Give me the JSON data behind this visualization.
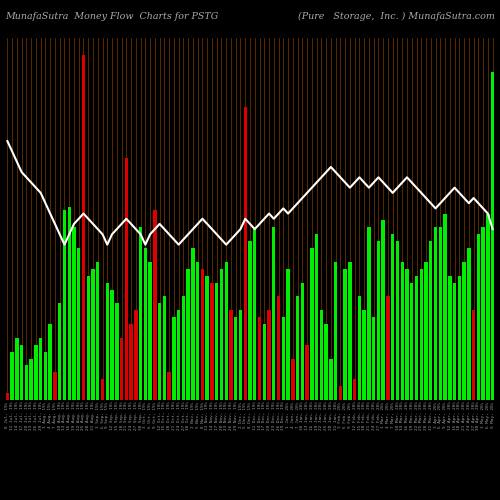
{
  "title_left": "MunafaSutra  Money Flow  Charts for PSTG",
  "title_right": "(Pure   Storage,  Inc. ) MunafaSutra.com",
  "bg_color": "#000000",
  "bar_color_pos": "#00ee00",
  "bar_color_neg": "#dd0000",
  "grid_color": "#7B3A00",
  "line_color": "#ffffff",
  "bar_values": [
    2,
    14,
    18,
    16,
    10,
    12,
    16,
    18,
    14,
    22,
    8,
    28,
    55,
    56,
    50,
    44,
    100,
    36,
    38,
    40,
    6,
    34,
    32,
    28,
    18,
    70,
    22,
    26,
    50,
    44,
    40,
    55,
    28,
    30,
    8,
    24,
    26,
    30,
    38,
    44,
    40,
    38,
    36,
    34,
    34,
    38,
    40,
    26,
    24,
    26,
    85,
    46,
    50,
    24,
    22,
    26,
    50,
    30,
    24,
    38,
    12,
    30,
    34,
    16,
    44,
    48,
    26,
    22,
    12,
    40,
    4,
    38,
    40,
    6,
    30,
    26,
    50,
    24,
    46,
    52,
    30,
    48,
    46,
    40,
    38,
    34,
    36,
    38,
    40,
    46,
    50,
    50,
    54,
    36,
    34,
    36,
    40,
    44,
    26,
    48,
    50,
    54,
    95
  ],
  "bar_colors": [
    "neg",
    "pos",
    "pos",
    "pos",
    "pos",
    "pos",
    "pos",
    "pos",
    "pos",
    "pos",
    "neg",
    "pos",
    "pos",
    "pos",
    "pos",
    "pos",
    "neg",
    "pos",
    "pos",
    "pos",
    "neg",
    "pos",
    "pos",
    "pos",
    "neg",
    "neg",
    "neg",
    "neg",
    "pos",
    "pos",
    "pos",
    "neg",
    "pos",
    "pos",
    "neg",
    "pos",
    "pos",
    "pos",
    "pos",
    "pos",
    "pos",
    "neg",
    "pos",
    "neg",
    "pos",
    "pos",
    "pos",
    "neg",
    "pos",
    "pos",
    "neg",
    "pos",
    "pos",
    "neg",
    "pos",
    "neg",
    "pos",
    "neg",
    "pos",
    "pos",
    "neg",
    "pos",
    "pos",
    "neg",
    "pos",
    "pos",
    "pos",
    "pos",
    "pos",
    "pos",
    "neg",
    "pos",
    "pos",
    "neg",
    "pos",
    "pos",
    "pos",
    "pos",
    "pos",
    "pos",
    "neg",
    "pos",
    "pos",
    "pos",
    "pos",
    "pos",
    "pos",
    "pos",
    "pos",
    "pos",
    "pos",
    "pos",
    "pos",
    "pos",
    "pos",
    "pos",
    "pos",
    "pos",
    "neg",
    "pos",
    "pos",
    "pos",
    "pos"
  ],
  "line_values": [
    72,
    70,
    68,
    66,
    65,
    64,
    63,
    62,
    60,
    58,
    56,
    54,
    52,
    54,
    56,
    57,
    58,
    57,
    56,
    55,
    54,
    52,
    54,
    55,
    56,
    57,
    56,
    55,
    54,
    52,
    54,
    55,
    56,
    55,
    54,
    53,
    52,
    53,
    54,
    55,
    56,
    57,
    56,
    55,
    54,
    53,
    52,
    53,
    54,
    55,
    57,
    56,
    55,
    56,
    57,
    58,
    57,
    58,
    59,
    58,
    59,
    60,
    61,
    62,
    63,
    64,
    65,
    66,
    67,
    66,
    65,
    64,
    63,
    64,
    65,
    64,
    63,
    64,
    65,
    64,
    63,
    62,
    63,
    64,
    65,
    64,
    63,
    62,
    61,
    60,
    59,
    60,
    61,
    62,
    63,
    62,
    61,
    60,
    61,
    60,
    59,
    58,
    55
  ],
  "dates": [
    "8 Jul, 19%",
    "11 Jul, 19%",
    "14 Jul, 19%",
    "17 Jul, 19%",
    "20 Jul, 19%",
    "23 Jul, 19%",
    "26 Jul, 19%",
    "29 Jul, 19%",
    "1 Aug, 19%",
    "4 Aug, 19%",
    "7 Aug, 19%",
    "10 Aug, 19%",
    "13 Aug, 19%",
    "16 Aug, 19%",
    "19 Aug, 19%",
    "22 Aug, 19%",
    "25 Aug, 19%",
    "28 Aug, 19%",
    "31 Aug, 19%",
    "3 Sep, 19%",
    "6 Sep, 19%",
    "9 Sep, 19%",
    "12 Sep, 19%",
    "15 Sep, 19%",
    "18 Sep, 19%",
    "21 Sep, 19%",
    "24 Sep, 19%",
    "27 Sep, 19%",
    "30 Sep, 19%",
    "3 Oct, 19%",
    "6 Oct, 19%",
    "9 Oct, 19%",
    "12 Oct, 19%",
    "15 Oct, 19%",
    "18 Oct, 19%",
    "21 Oct, 19%",
    "24 Oct, 19%",
    "27 Oct, 19%",
    "30 Oct, 19%",
    "2 Nov, 19%",
    "5 Nov, 19%",
    "8 Nov, 19%",
    "11 Nov, 19%",
    "14 Nov, 19%",
    "17 Nov, 19%",
    "20 Nov, 19%",
    "23 Nov, 19%",
    "26 Nov, 19%",
    "29 Nov, 19%",
    "2 Dec, 19%",
    "5 Dec, 19%",
    "8 Dec, 19%",
    "11 Dec, 19%",
    "14 Dec, 19%",
    "17 Dec, 19%",
    "20 Dec, 19%",
    "23 Dec, 19%",
    "26 Dec, 19%",
    "29 Dec, 19%",
    "1 Jan, 20%",
    "4 Jan, 20%",
    "7 Jan, 20%",
    "10 Jan, 20%",
    "13 Jan, 20%",
    "16 Jan, 20%",
    "19 Jan, 20%",
    "22 Jan, 20%",
    "25 Jan, 20%",
    "28 Jan, 20%",
    "31 Jan, 20%",
    "3 Feb, 20%",
    "6 Feb, 20%",
    "9 Feb, 20%",
    "12 Feb, 20%",
    "15 Feb, 20%",
    "18 Feb, 20%",
    "21 Feb, 20%",
    "24 Feb, 20%",
    "27 Feb, 20%",
    "1 Mar, 20%",
    "4 Mar, 20%",
    "7 Mar, 20%",
    "10 Mar, 20%",
    "13 Mar, 20%",
    "16 Mar, 20%",
    "19 Mar, 20%",
    "22 Mar, 20%",
    "25 Mar, 20%",
    "28 Mar, 20%",
    "31 Mar, 20%",
    "3 Apr, 20%",
    "6 Apr, 20%",
    "9 Apr, 20%",
    "12 Apr, 20%",
    "15 Apr, 20%",
    "18 Apr, 20%",
    "21 Apr, 20%",
    "24 Apr, 20%",
    "27 Apr, 20%",
    "30 Apr, 20%",
    "3 May, 20%",
    "6 May, 20%",
    "9 May, 20%"
  ]
}
